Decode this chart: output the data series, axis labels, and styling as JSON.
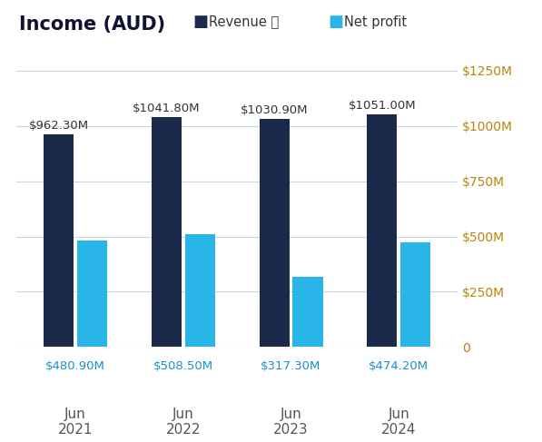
{
  "title": "Income (AUD)",
  "legend_revenue": "Revenue ⓘ",
  "legend_profit": "Net profit",
  "categories": [
    "Jun\n2021",
    "Jun\n2022",
    "Jun\n2023",
    "Jun\n2024"
  ],
  "revenue": [
    962.3,
    1041.8,
    1030.9,
    1051.0
  ],
  "net_profit": [
    480.9,
    508.5,
    317.3,
    474.2
  ],
  "revenue_labels": [
    "$962.30M",
    "$1041.80M",
    "$1030.90M",
    "$1051.00M"
  ],
  "profit_labels": [
    "$480.90M",
    "$508.50M",
    "$317.30M",
    "$474.20M"
  ],
  "revenue_color": "#1b2a4a",
  "profit_color": "#29b5e8",
  "ytick_labels": [
    "$1250M",
    "$1000M",
    "$750M",
    "$500M",
    "$250M",
    "0"
  ],
  "ytick_values": [
    1250,
    1000,
    750,
    500,
    250,
    0
  ],
  "ylim": [
    0,
    1320
  ],
  "background_color": "#ffffff",
  "grid_color": "#c8d4e8",
  "title_fontsize": 15,
  "label_fontsize": 9.5,
  "tick_fontsize": 10,
  "ytick_color": "#b8860b",
  "xtick_color": "#555555",
  "profit_label_color": "#1a90c8",
  "revenue_label_color": "#333333"
}
